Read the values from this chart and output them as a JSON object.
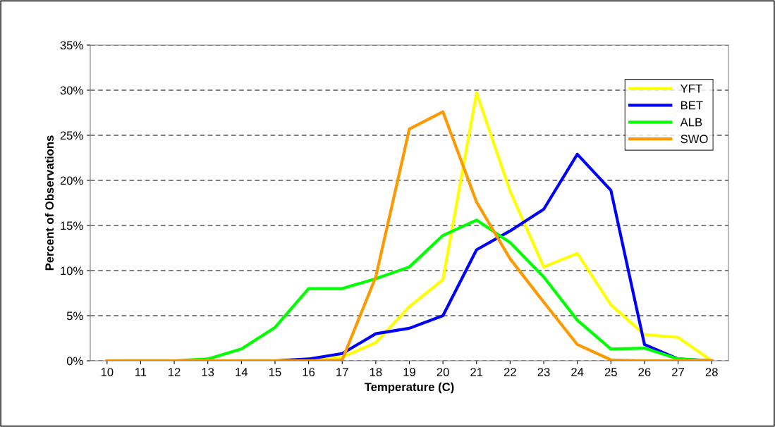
{
  "chart_data": {
    "type": "line",
    "xlabel": "Temperature (C)",
    "ylabel": "Percent of Observations",
    "categories": [
      "10",
      "11",
      "12",
      "13",
      "14",
      "15",
      "16",
      "17",
      "18",
      "19",
      "20",
      "21",
      "22",
      "23",
      "24",
      "25",
      "26",
      "27",
      "28"
    ],
    "series": [
      {
        "name": "YFT",
        "color": "#ffff00",
        "values": [
          null,
          null,
          null,
          null,
          null,
          0,
          0,
          0.4,
          2.0,
          6.0,
          9.0,
          29.7,
          18.8,
          10.4,
          11.9,
          6.2,
          2.9,
          2.6,
          0
        ]
      },
      {
        "name": "BET",
        "color": "#0000ff",
        "values": [
          null,
          null,
          null,
          null,
          0,
          0,
          0.2,
          0.8,
          3.0,
          3.6,
          5.0,
          12.3,
          14.4,
          16.8,
          22.9,
          18.9,
          1.8,
          0.2,
          0
        ]
      },
      {
        "name": "ALB",
        "color": "#00ff00",
        "values": [
          0,
          0,
          0,
          0.2,
          1.3,
          3.7,
          8.0,
          8.0,
          9.1,
          10.4,
          13.9,
          15.6,
          13.1,
          9.3,
          4.5,
          1.3,
          1.4,
          0.2,
          0
        ]
      },
      {
        "name": "SWO",
        "color": "#ff9900",
        "values": [
          0,
          0,
          0,
          0,
          0,
          0,
          0,
          0.1,
          9.3,
          25.7,
          27.6,
          17.6,
          11.3,
          6.5,
          1.8,
          0.1,
          0,
          0,
          0
        ]
      }
    ],
    "ylim": [
      0,
      35
    ],
    "yticks": [
      {
        "value": 0,
        "label": "0%"
      },
      {
        "value": 5,
        "label": "5%"
      },
      {
        "value": 10,
        "label": "10%"
      },
      {
        "value": 15,
        "label": "15%"
      },
      {
        "value": 20,
        "label": "20%"
      },
      {
        "value": 25,
        "label": "25%"
      },
      {
        "value": 30,
        "label": "30%"
      },
      {
        "value": 35,
        "label": "35%"
      }
    ],
    "grid": "y",
    "legend": "top right",
    "marker": "none",
    "line_style": "solid"
  }
}
